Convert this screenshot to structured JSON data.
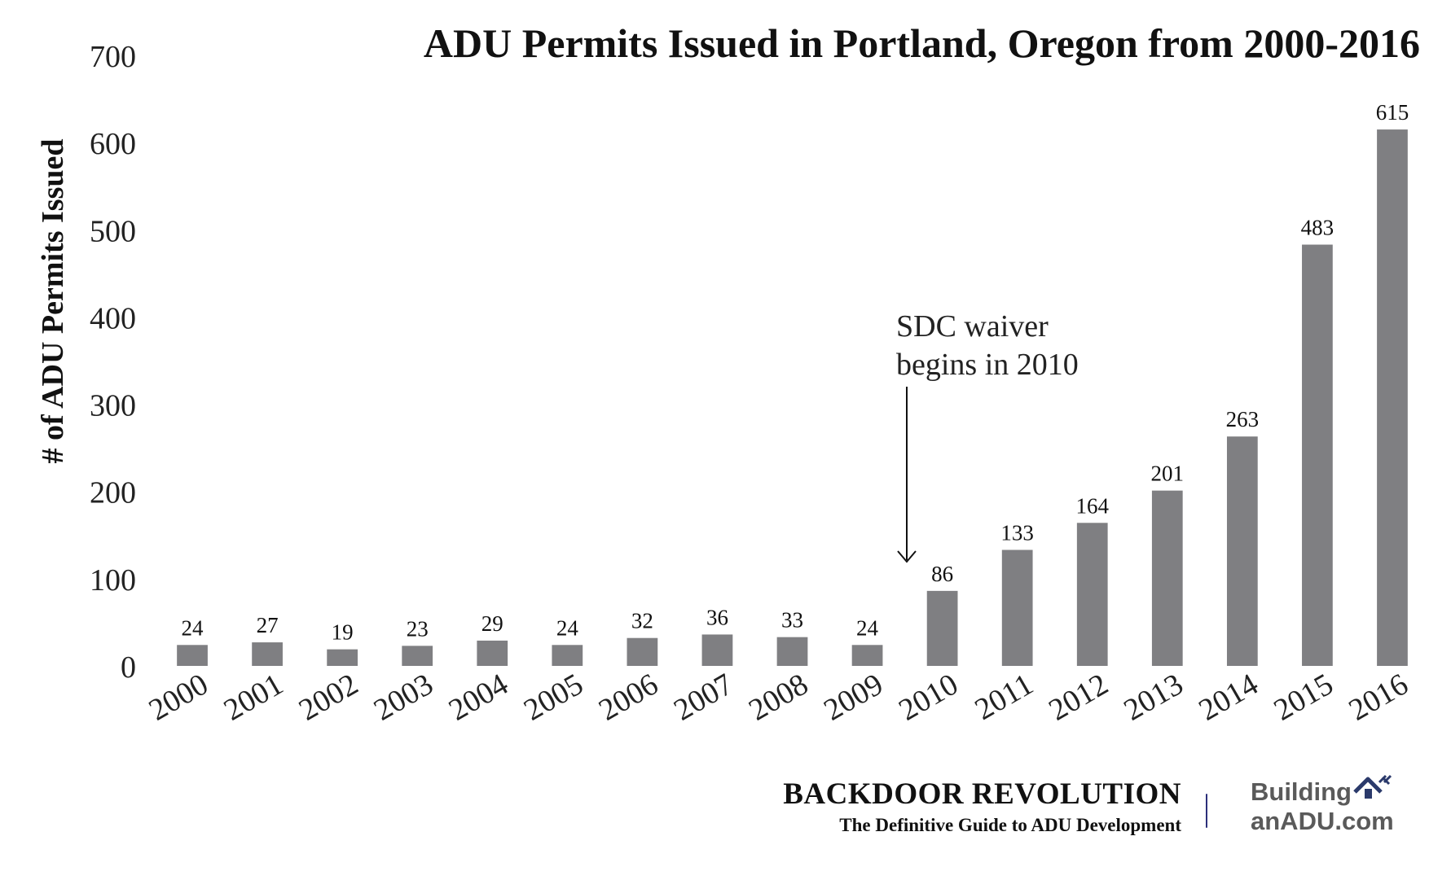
{
  "chart_data": {
    "type": "bar",
    "title": "ADU Permits Issued in Portland, Oregon from 2000-2016",
    "ylabel": "# of ADU Permits Issued",
    "xlabel": "",
    "ylim": [
      0,
      700
    ],
    "yticks": [
      0,
      100,
      200,
      300,
      400,
      500,
      600,
      700
    ],
    "categories": [
      "2000",
      "2001",
      "2002",
      "2003",
      "2004",
      "2005",
      "2006",
      "2007",
      "2008",
      "2009",
      "2010",
      "2011",
      "2012",
      "2013",
      "2014",
      "2015",
      "2016"
    ],
    "values": [
      24,
      27,
      19,
      23,
      29,
      24,
      32,
      36,
      33,
      24,
      86,
      133,
      164,
      201,
      263,
      483,
      615
    ],
    "bar_color": "#7f7f82",
    "grid": false,
    "legend": "none",
    "annotation": {
      "lines": [
        "SDC waiver",
        "begins in 2010"
      ],
      "points_to": "2010"
    }
  },
  "footer": {
    "brand_title": "BACKDOOR REVOLUTION",
    "brand_tagline": "The Definitive Guide to ADU Development",
    "logo_line1": "Building",
    "logo_line2": "anADU.com",
    "logo_icon": "house-icon",
    "logo_color": "#5a5a5a",
    "divider_color": "#2b2f7a"
  }
}
